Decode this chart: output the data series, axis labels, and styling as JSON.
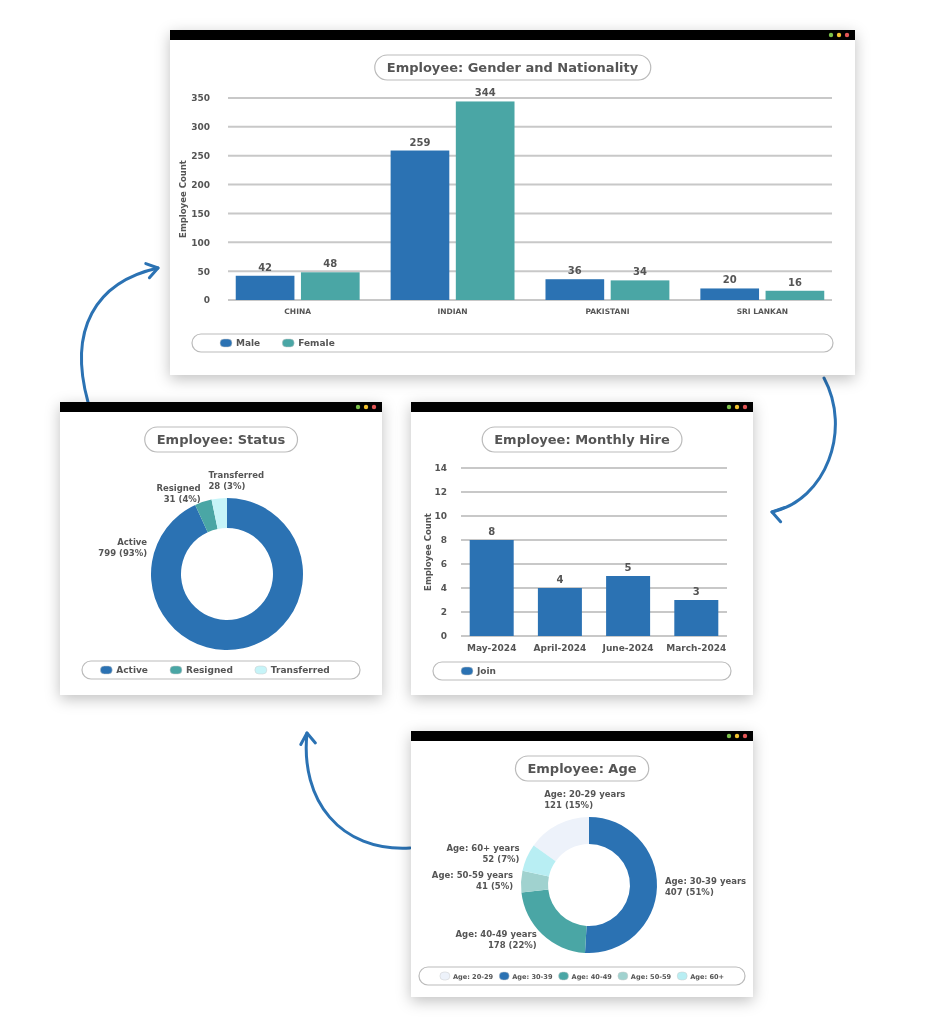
{
  "chart_data": [
    {
      "type": "bar",
      "title": "Employee: Gender and Nationality",
      "ylabel": "Employee Count",
      "categories": [
        "CHINA",
        "INDIAN",
        "PAKISTANI",
        "SRI LANKAN"
      ],
      "series": [
        {
          "name": "Male",
          "color": "#2b72b3",
          "values": [
            42,
            259,
            36,
            20
          ]
        },
        {
          "name": "Female",
          "color": "#4aa6a5",
          "values": [
            48,
            344,
            34,
            16
          ]
        }
      ],
      "ylim": [
        0,
        350
      ],
      "yticks": [
        0,
        50,
        100,
        150,
        200,
        250,
        300,
        350
      ],
      "grid": "y",
      "legend": "bottom",
      "data_labels": true
    },
    {
      "type": "donut",
      "title": "Employee: Status",
      "categories": [
        "Active",
        "Resigned",
        "Transferred"
      ],
      "values": [
        799,
        31,
        28
      ],
      "colors": [
        "#2b72b3",
        "#4aa6a5",
        "#c6f4f8"
      ],
      "value_labels": [
        "Active\n799 (93%)",
        "Resigned\n31 (4%)",
        "Transferred\n28 (3%)"
      ],
      "legend": "bottom"
    },
    {
      "type": "bar",
      "title": "Employee: Monthly Hire",
      "ylabel": "Employee Count",
      "categories": [
        "May-2024",
        "April-2024",
        "June-2024",
        "March-2024"
      ],
      "series": [
        {
          "name": "Join",
          "color": "#2b72b3",
          "values": [
            8,
            4,
            5,
            3
          ]
        }
      ],
      "ylim": [
        0,
        14
      ],
      "yticks": [
        0,
        2,
        4,
        6,
        8,
        10,
        12,
        14
      ],
      "grid": "y",
      "legend": "bottom",
      "data_labels": true
    },
    {
      "type": "donut",
      "title": "Employee: Age",
      "categories": [
        "Age: 20-29",
        "Age: 30-39",
        "Age: 40-49",
        "Age: 50-59",
        "Age: 60+"
      ],
      "values": [
        121,
        407,
        178,
        41,
        52
      ],
      "colors": [
        "#edf2fa",
        "#2b72b3",
        "#4aa6a5",
        "#a0d2cf",
        "#b8eef3"
      ],
      "value_labels": [
        "Age: 20-29 years\n121 (15%)",
        "Age: 30-39 years\n407 (51%)",
        "Age: 40-49 years\n178 (22%)",
        "Age: 50-59 years\n41 (5%)",
        "Age: 60+ years\n52 (7%)"
      ],
      "legend": "bottom"
    }
  ]
}
